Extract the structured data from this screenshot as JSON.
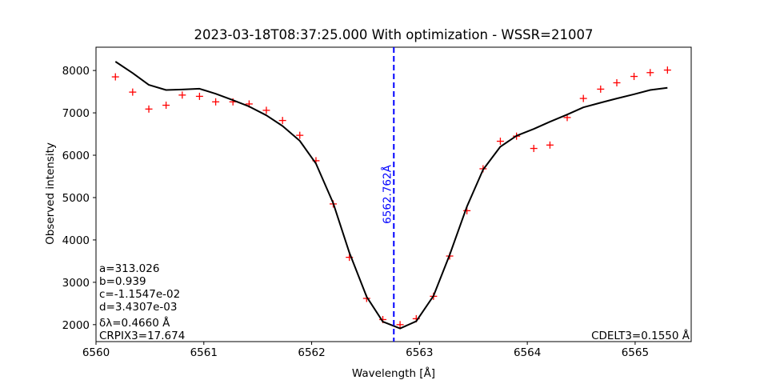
{
  "chart_data": {
    "type": "line",
    "title": "2023-03-18T08:37:25.000 With optimization - WSSR=21007",
    "xlabel": "Wavelength [Å]",
    "ylabel": "Observed intensity",
    "xlim": [
      6560.0,
      6565.52
    ],
    "ylim": [
      1600,
      8550
    ],
    "xticks": [
      6560,
      6561,
      6562,
      6563,
      6564,
      6565
    ],
    "yticks": [
      2000,
      3000,
      4000,
      5000,
      6000,
      7000,
      8000
    ],
    "grid": false,
    "series": [
      {
        "style": "markers",
        "marker": "+",
        "color": "#ff0000",
        "x": [
          6560.18,
          6560.34,
          6560.49,
          6560.65,
          6560.8,
          6560.96,
          6561.11,
          6561.27,
          6561.42,
          6561.58,
          6561.73,
          6561.89,
          6562.04,
          6562.2,
          6562.35,
          6562.51,
          6562.66,
          6562.82,
          6562.97,
          6563.13,
          6563.28,
          6563.44,
          6563.59,
          6563.75,
          6563.9,
          6564.06,
          6564.21,
          6564.37,
          6564.52,
          6564.68,
          6564.83,
          6564.99,
          6565.14,
          6565.3
        ],
        "y": [
          7850,
          7490,
          7090,
          7180,
          7420,
          7390,
          7260,
          7260,
          7210,
          7060,
          6820,
          6470,
          5870,
          4850,
          3590,
          2620,
          2120,
          2000,
          2140,
          2670,
          3620,
          4690,
          5680,
          6330,
          6450,
          6160,
          6240,
          6890,
          7340,
          7560,
          7710,
          7860,
          7950,
          8010
        ]
      },
      {
        "style": "line",
        "color": "#000000",
        "x": [
          6560.18,
          6560.34,
          6560.49,
          6560.65,
          6560.8,
          6560.96,
          6561.11,
          6561.27,
          6561.42,
          6561.58,
          6561.73,
          6561.89,
          6562.04,
          6562.2,
          6562.35,
          6562.51,
          6562.66,
          6562.82,
          6562.97,
          6563.13,
          6563.28,
          6563.44,
          6563.59,
          6563.75,
          6563.9,
          6564.06,
          6564.21,
          6564.37,
          6564.52,
          6564.68,
          6564.83,
          6564.99,
          6565.14,
          6565.3
        ],
        "y": [
          8210,
          7940,
          7660,
          7540,
          7550,
          7570,
          7450,
          7300,
          7150,
          6940,
          6690,
          6340,
          5800,
          4870,
          3700,
          2660,
          2070,
          1910,
          2080,
          2680,
          3650,
          4790,
          5660,
          6200,
          6460,
          6620,
          6790,
          6960,
          7130,
          7240,
          7340,
          7440,
          7540,
          7590
        ]
      }
    ],
    "vline": {
      "x": 6562.762,
      "label": "6562.762Å",
      "color": "#0000ff",
      "style": "dashed"
    },
    "annotations": {
      "params": [
        "a=313.026",
        "b=0.939",
        "c=-1.1547e-02",
        "d=3.4307e-03",
        "δλ=0.4660 Å",
        "CRPIX3=17.674"
      ],
      "cdelt": "CDELT3=0.1550 Å"
    }
  }
}
